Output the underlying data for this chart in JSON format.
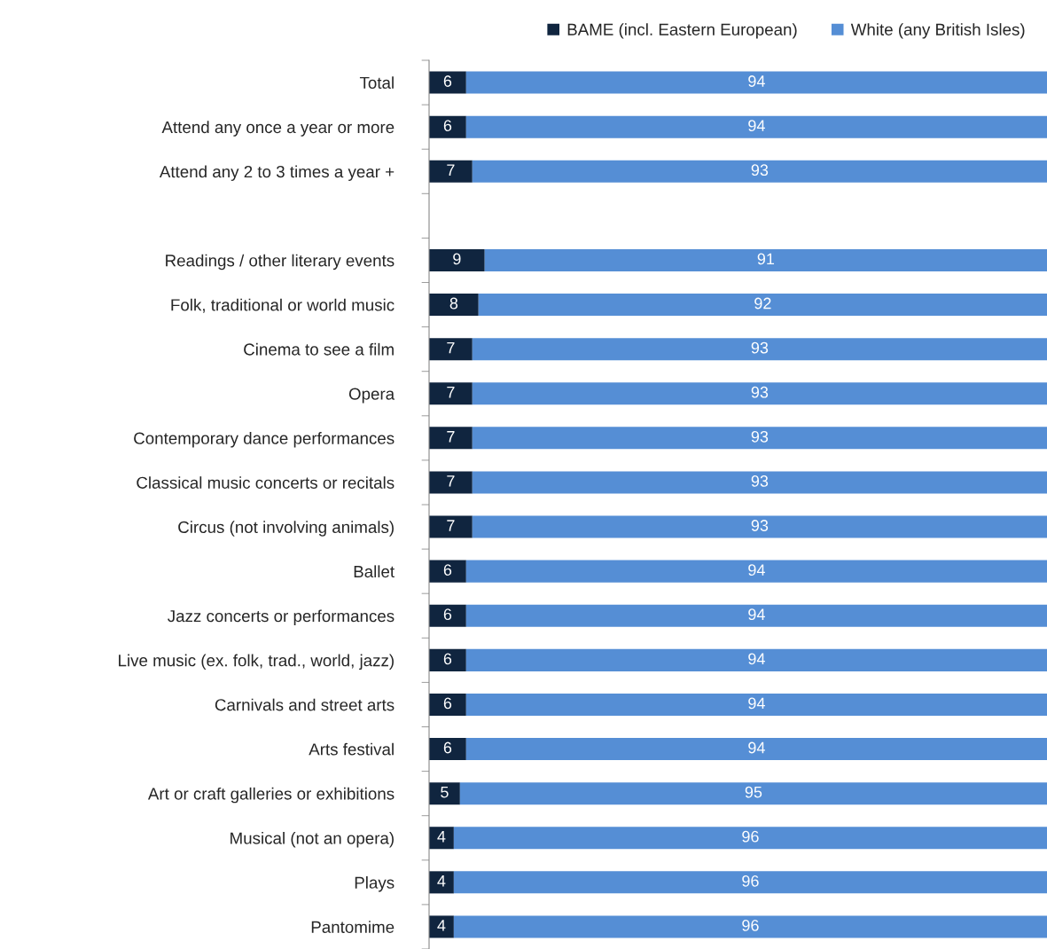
{
  "chart_data": {
    "type": "bar",
    "orientation": "horizontal",
    "stacked": true,
    "data_labels": true,
    "legend": "top right",
    "tick_labels": "y",
    "grid": false,
    "xlim": [
      0,
      100
    ],
    "categories": [
      "Total",
      "Attend any once a year or more",
      "Attend any 2 to 3 times a year +",
      null,
      "Readings / other literary events",
      "Folk, traditional or world music",
      "Cinema to see a film",
      "Opera",
      "Contemporary dance performances",
      "Classical music concerts or recitals",
      "Circus (not involving animals)",
      "Ballet",
      "Jazz concerts or performances",
      "Live music (ex. folk, trad., world, jazz)",
      "Carnivals and street arts",
      "Arts festival",
      "Art or craft galleries or exhibitions",
      "Musical (not an opera)",
      "Plays",
      "Pantomime"
    ],
    "series": [
      {
        "name": "BAME (incl. Eastern European)",
        "color": "#10253f",
        "values": [
          6,
          6,
          7,
          null,
          9,
          8,
          7,
          7,
          7,
          7,
          7,
          6,
          6,
          6,
          6,
          6,
          5,
          4,
          4,
          4
        ]
      },
      {
        "name": "White (any British Isles)",
        "color": "#558ed5",
        "values": [
          94,
          94,
          93,
          null,
          91,
          92,
          93,
          93,
          93,
          93,
          93,
          94,
          94,
          94,
          94,
          94,
          95,
          96,
          96,
          96
        ]
      }
    ]
  }
}
